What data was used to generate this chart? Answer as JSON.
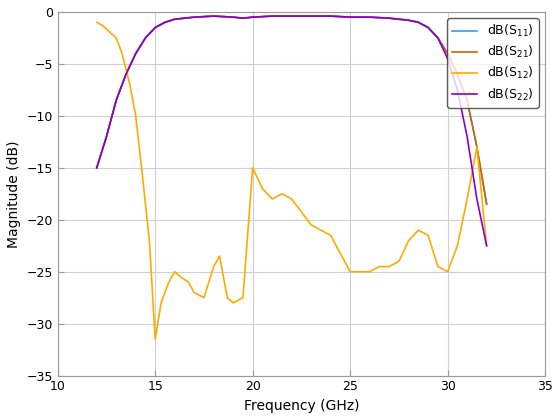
{
  "title": "",
  "xlabel": "Frequency (GHz)",
  "ylabel": "Magnitude (dB)",
  "xlim": [
    10,
    35
  ],
  "ylim": [
    -35,
    0
  ],
  "xticks": [
    10,
    15,
    20,
    25,
    30,
    35
  ],
  "yticks": [
    0,
    -5,
    -10,
    -15,
    -20,
    -25,
    -30,
    -35
  ],
  "line_colors": [
    "#3399ff",
    "#cc6600",
    "#ffaa00",
    "#8800cc"
  ],
  "S11": {
    "x": [
      12.0,
      12.5,
      13.0,
      13.5,
      14.0,
      14.5,
      15.0,
      15.5,
      16.0,
      17.0,
      18.0,
      19.0,
      19.5,
      20.0,
      21.0,
      22.0,
      23.0,
      24.0,
      25.0,
      26.0,
      27.0,
      28.0,
      28.5,
      29.0,
      29.5,
      30.0,
      30.5,
      31.0,
      31.5,
      32.0
    ],
    "y": [
      -15.0,
      -12.0,
      -8.5,
      -6.0,
      -4.0,
      -2.5,
      -1.5,
      -1.0,
      -0.7,
      -0.5,
      -0.4,
      -0.5,
      -0.6,
      -0.5,
      -0.4,
      -0.4,
      -0.4,
      -0.4,
      -0.5,
      -0.5,
      -0.6,
      -0.8,
      -1.0,
      -1.5,
      -2.5,
      -4.0,
      -6.0,
      -8.5,
      -13.0,
      -18.5
    ]
  },
  "S21": {
    "x": [
      12.0,
      12.5,
      13.0,
      13.5,
      14.0,
      14.5,
      15.0,
      15.5,
      16.0,
      17.0,
      18.0,
      19.0,
      19.5,
      20.0,
      21.0,
      22.0,
      23.0,
      24.0,
      25.0,
      26.0,
      27.0,
      28.0,
      28.5,
      29.0,
      29.5,
      30.0,
      30.5,
      31.0,
      31.5,
      32.0
    ],
    "y": [
      -15.0,
      -12.0,
      -8.5,
      -6.0,
      -4.0,
      -2.5,
      -1.5,
      -1.0,
      -0.7,
      -0.5,
      -0.4,
      -0.5,
      -0.6,
      -0.5,
      -0.4,
      -0.4,
      -0.4,
      -0.4,
      -0.5,
      -0.5,
      -0.6,
      -0.8,
      -1.0,
      -1.5,
      -2.5,
      -4.0,
      -6.0,
      -8.5,
      -13.0,
      -18.5
    ]
  },
  "S12": {
    "x": [
      12.0,
      12.3,
      12.7,
      13.0,
      13.3,
      13.7,
      14.0,
      14.3,
      14.7,
      15.0,
      15.3,
      15.7,
      16.0,
      16.3,
      16.7,
      17.0,
      17.5,
      18.0,
      18.3,
      18.7,
      19.0,
      19.5,
      20.0,
      20.5,
      21.0,
      21.5,
      22.0,
      23.0,
      24.0,
      25.0,
      25.5,
      26.0,
      26.5,
      27.0,
      27.5,
      28.0,
      28.5,
      29.0,
      29.5,
      30.0,
      30.5,
      31.0,
      31.5,
      32.0
    ],
    "y": [
      -1.0,
      -1.3,
      -2.0,
      -2.5,
      -4.0,
      -7.0,
      -10.0,
      -15.0,
      -22.0,
      -31.5,
      -28.0,
      -26.0,
      -25.0,
      -25.5,
      -26.0,
      -27.0,
      -27.5,
      -24.5,
      -23.5,
      -27.5,
      -28.0,
      -27.5,
      -15.0,
      -17.0,
      -18.0,
      -17.5,
      -18.0,
      -20.5,
      -21.5,
      -25.0,
      -25.0,
      -25.0,
      -24.5,
      -24.5,
      -24.0,
      -22.0,
      -21.0,
      -21.5,
      -24.5,
      -25.0,
      -22.5,
      -18.0,
      -13.0,
      -22.5
    ]
  },
  "S22": {
    "x": [
      12.0,
      12.5,
      13.0,
      13.5,
      14.0,
      14.5,
      15.0,
      15.5,
      16.0,
      17.0,
      18.0,
      19.0,
      19.5,
      20.0,
      21.0,
      22.0,
      23.0,
      24.0,
      25.0,
      26.0,
      27.0,
      28.0,
      28.5,
      29.0,
      29.5,
      30.0,
      30.5,
      31.0,
      31.5,
      32.0
    ],
    "y": [
      -15.0,
      -12.0,
      -8.5,
      -6.0,
      -4.0,
      -2.5,
      -1.5,
      -1.0,
      -0.7,
      -0.5,
      -0.4,
      -0.5,
      -0.6,
      -0.5,
      -0.4,
      -0.4,
      -0.4,
      -0.4,
      -0.5,
      -0.5,
      -0.6,
      -0.8,
      -1.0,
      -1.5,
      -2.5,
      -4.5,
      -7.5,
      -12.0,
      -18.0,
      -22.5
    ]
  },
  "figsize": [
    5.6,
    4.2
  ],
  "dpi": 100,
  "background_color": "#ffffff",
  "grid_color": "#d0d0d0"
}
